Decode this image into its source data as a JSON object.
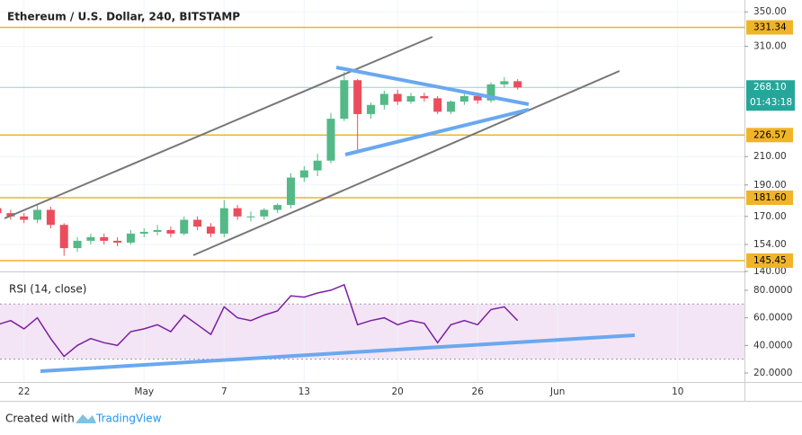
{
  "chart_data": [
    {
      "type": "candlestick",
      "title": "Ethereum / U.S. Dollar, 240, BITSTAMP",
      "x": [
        20,
        21,
        22,
        23,
        24,
        25,
        26,
        27,
        28,
        29,
        30,
        31,
        32,
        33,
        34,
        35,
        36,
        37,
        38,
        39,
        40,
        41,
        42,
        43,
        44,
        45,
        46,
        47,
        48,
        49,
        50,
        51,
        52,
        53,
        54,
        55,
        56,
        57,
        58,
        59
      ],
      "open": [
        175,
        172,
        170,
        168,
        174,
        165,
        152,
        156,
        158,
        156,
        155,
        160,
        161,
        162,
        160,
        168,
        164,
        160,
        175,
        170,
        170,
        174,
        177,
        195,
        200,
        207,
        240,
        275,
        244,
        252,
        262,
        255,
        260,
        258,
        246,
        255,
        260,
        256,
        271,
        274
      ],
      "high": [
        177,
        174,
        172,
        177,
        176,
        166,
        158,
        160,
        160,
        158,
        162,
        163,
        165,
        164,
        170,
        170,
        166,
        180,
        177,
        173,
        175,
        178,
        198,
        203,
        212,
        245,
        283,
        276,
        254,
        265,
        266,
        263,
        263,
        260,
        256,
        262,
        262,
        273,
        278,
        276
      ],
      "low": [
        170,
        168,
        166,
        166,
        163,
        148,
        150,
        154,
        154,
        153,
        154,
        158,
        159,
        158,
        159,
        162,
        158,
        158,
        168,
        167,
        168,
        172,
        175,
        192,
        196,
        205,
        238,
        215,
        240,
        248,
        252,
        253,
        255,
        244,
        244,
        252,
        253,
        254,
        268,
        266
      ],
      "close": [
        172,
        170,
        168,
        174,
        165,
        152,
        156,
        158,
        156,
        155,
        160,
        161,
        162,
        160,
        168,
        164,
        160,
        175,
        170,
        170,
        174,
        177,
        195,
        200,
        207,
        240,
        275,
        244,
        252,
        262,
        255,
        260,
        258,
        246,
        255,
        260,
        256,
        271,
        274,
        268.1
      ],
      "up_color": "#53b987",
      "down_color": "#eb4d5c",
      "log_scale": true,
      "grid": true,
      "xlim": [
        20.2,
        76
      ],
      "ylim": [
        140,
        365
      ],
      "yticks": [
        {
          "value": 350,
          "label": "350.00"
        },
        {
          "value": 310,
          "label": "310.00"
        },
        {
          "value": 210,
          "label": "210.00"
        },
        {
          "value": 190,
          "label": "190.00"
        },
        {
          "value": 170,
          "label": "170.00"
        },
        {
          "value": 154,
          "label": "154.00"
        },
        {
          "value": 140,
          "label": "140.00"
        }
      ],
      "levels": [
        331.34,
        226.57,
        181.6,
        145.45
      ],
      "level_labels": [
        "331.34",
        "226.57",
        "181.60",
        "145.45"
      ],
      "level_color": "#f0b429",
      "last_price": 268.1,
      "last_price_label": "268.10",
      "countdown": "01:43:18",
      "last_color": "#26a69a"
    },
    {
      "type": "line",
      "title": "RSI (14, close)",
      "values": [
        55,
        58,
        52,
        60,
        45,
        32,
        40,
        45,
        42,
        40,
        50,
        52,
        55,
        50,
        62,
        55,
        48,
        68,
        60,
        58,
        62,
        65,
        76,
        75,
        78,
        80,
        84,
        55,
        58,
        60,
        55,
        58,
        56,
        42,
        55,
        58,
        55,
        66,
        68,
        58
      ],
      "color": "#7b1fa2",
      "band": [
        30,
        70
      ],
      "band_color": "#f3e5f5",
      "xlim": [
        20.2,
        76
      ],
      "xticks": [
        {
          "value": 22,
          "label": "22"
        },
        {
          "value": 31,
          "label": "May"
        },
        {
          "value": 37,
          "label": "7"
        },
        {
          "value": 43,
          "label": "13"
        },
        {
          "value": 50,
          "label": "20"
        },
        {
          "value": 56,
          "label": "26"
        },
        {
          "value": 62,
          "label": "Jun"
        },
        {
          "value": 71,
          "label": "10"
        }
      ],
      "ylim": [
        13.5,
        93
      ],
      "yticks": [
        {
          "value": 80,
          "label": "80.0000"
        },
        {
          "value": 60,
          "label": "60.0000"
        },
        {
          "value": 40,
          "label": "40.0000"
        },
        {
          "value": 20,
          "label": "20.0000"
        }
      ]
    }
  ],
  "footer": {
    "text": "Created with",
    "brand": "TradingView"
  }
}
